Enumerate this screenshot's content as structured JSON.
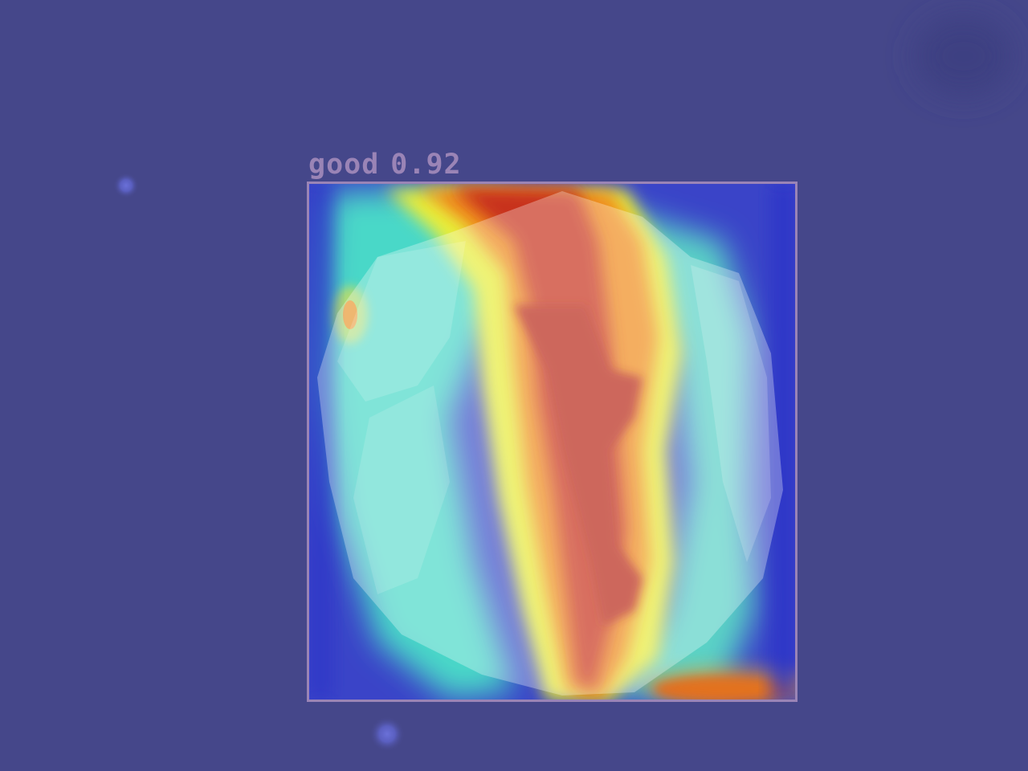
{
  "detection": {
    "label": "good",
    "confidence": "0.92",
    "box_color": "#9a84b6"
  },
  "background_color": "#45478a",
  "heatmap_colors": [
    "#2a2fd0",
    "#4fe6d0",
    "#e8ef3a",
    "#f08a1e",
    "#c8321e"
  ]
}
